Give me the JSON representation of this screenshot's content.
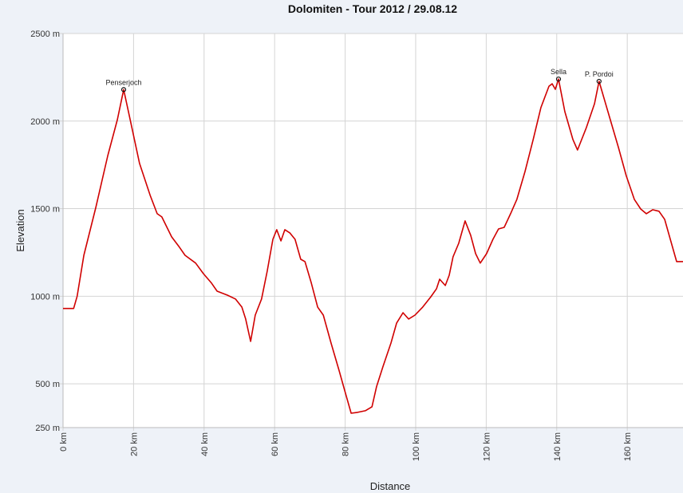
{
  "chart_data": {
    "type": "line",
    "title": "Dolomiten - Tour 2012 / 29.08.12",
    "xlabel": "Distance",
    "ylabel": "Elevation",
    "xlim": [
      0,
      175.8
    ],
    "ylim": [
      250,
      2500
    ],
    "x_ticks": [
      0,
      20,
      40,
      60,
      80,
      100,
      120,
      140,
      160
    ],
    "x_tick_labels": [
      "0 km",
      "20 km",
      "40 km",
      "60 km",
      "80 km",
      "100 km",
      "120 km",
      "140 km",
      "160 km"
    ],
    "y_ticks": [
      250,
      500,
      1000,
      1500,
      2000,
      2500
    ],
    "y_tick_labels": [
      "250 m",
      "500 m",
      "1000 m",
      "1500 m",
      "2000 m",
      "2500 m"
    ],
    "grid": true,
    "line_color": "#d00000",
    "series": [
      {
        "x": [
          0,
          3,
          4,
          5.9,
          9.3,
          12.7,
          15.4,
          17.2,
          18.8,
          21.7,
          24.7,
          26.7,
          28,
          30.8,
          33,
          34.6,
          37.6,
          39.8,
          42.1,
          43.7,
          46.6,
          48.9,
          50.7,
          51.8,
          53.2,
          54.5,
          56.3,
          57.9,
          59.5,
          60.6,
          61.8,
          62.9,
          64.3,
          65.8,
          67.4,
          68.6,
          70.4,
          72.2,
          73.8,
          76,
          78.3,
          79.9,
          81.7,
          83.5,
          85.7,
          87.6,
          88.9,
          90.7,
          93,
          94.6,
          96.4,
          98,
          99.8,
          102,
          104.3,
          105.9,
          106.8,
          108.4,
          109.5,
          110.6,
          112.2,
          114,
          115.6,
          117,
          118.3,
          120.1,
          121.9,
          123.5,
          125.1,
          126.9,
          128.7,
          131,
          133.3,
          135.5,
          137.8,
          138.7,
          139.6,
          140.5,
          142.3,
          144.6,
          145.9,
          148.4,
          150.7,
          152,
          154.5,
          157.5,
          159.7,
          162,
          163.8,
          165.4,
          167.2,
          169,
          170.6,
          172.2,
          174,
          175.8
        ],
        "y": [
          930,
          930,
          1000,
          1234,
          1507,
          1803,
          2008,
          2180,
          2030,
          1758,
          1576,
          1471,
          1453,
          1339,
          1280,
          1234,
          1189,
          1129,
          1075,
          1029,
          1006,
          984,
          938,
          870,
          742,
          892,
          984,
          1143,
          1325,
          1380,
          1316,
          1380,
          1362,
          1325,
          1211,
          1198,
          1075,
          938,
          892,
          733,
          574,
          460,
          332,
          337,
          346,
          369,
          483,
          597,
          733,
          847,
          906,
          870,
          892,
          938,
          997,
          1043,
          1097,
          1061,
          1120,
          1225,
          1302,
          1430,
          1348,
          1243,
          1189,
          1243,
          1325,
          1384,
          1393,
          1471,
          1553,
          1712,
          1894,
          2077,
          2199,
          2213,
          2181,
          2240,
          2054,
          1894,
          1835,
          1963,
          2099,
          2227,
          2054,
          1849,
          1689,
          1553,
          1498,
          1471,
          1494,
          1485,
          1439,
          1325,
          1198,
          1198
        ]
      }
    ],
    "annotations": [
      {
        "label": "Penserjoch",
        "x": 17.2,
        "y": 2180
      },
      {
        "label": "Sella",
        "x": 140.5,
        "y": 2240
      },
      {
        "label": "P. Pordoi",
        "x": 152,
        "y": 2227
      }
    ]
  }
}
